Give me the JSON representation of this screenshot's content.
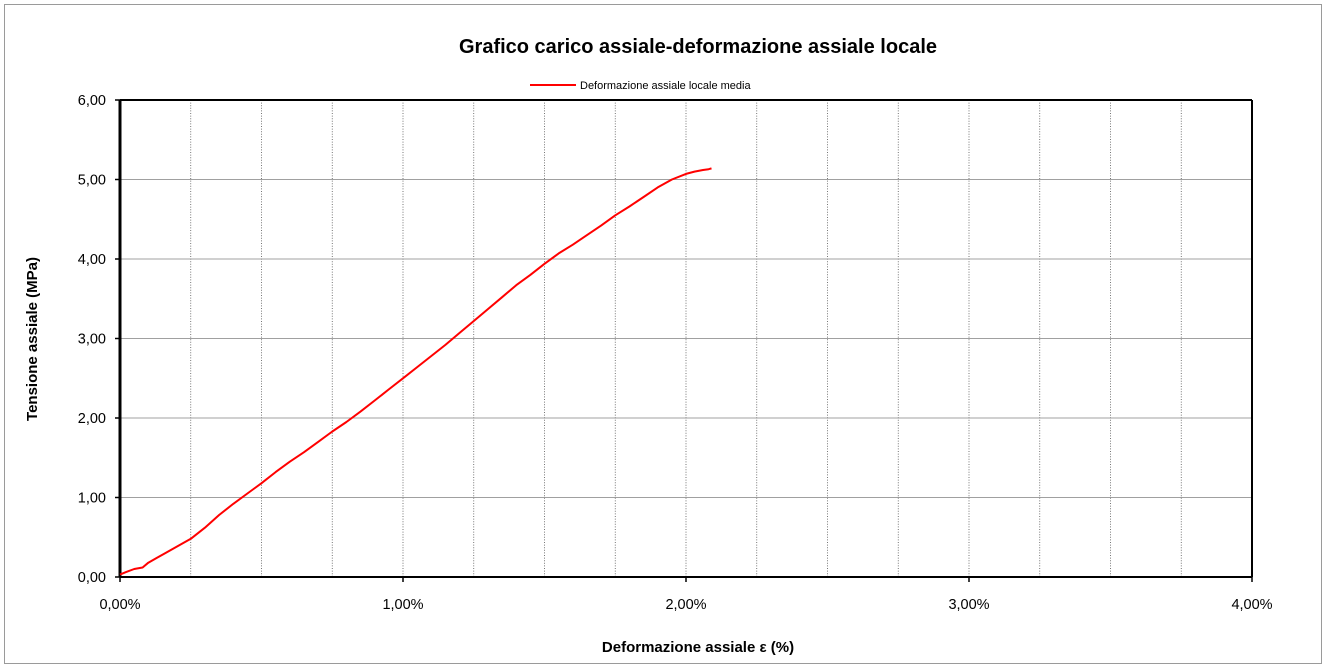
{
  "chart_data": {
    "type": "line",
    "title": "Grafico carico assiale-deformazione assiale locale",
    "xlabel": "Deformazione assiale ε (%)",
    "ylabel": "Tensione assiale (MPa)",
    "xlim": [
      0,
      4
    ],
    "ylim": [
      0,
      6
    ],
    "x_ticks": [
      "0,00%",
      "1,00%",
      "2,00%",
      "3,00%",
      "4,00%"
    ],
    "y_ticks": [
      "0,00",
      "1,00",
      "2,00",
      "3,00",
      "4,00",
      "5,00",
      "6,00"
    ],
    "x_minor_grid_step": 0.25,
    "y_grid_step": 1,
    "grid": true,
    "legend_position": "top-center",
    "series": [
      {
        "name": "Deformazione assiale locale media",
        "color": "#ff0000",
        "x": [
          0.0,
          0.02,
          0.05,
          0.08,
          0.1,
          0.13,
          0.16,
          0.2,
          0.25,
          0.3,
          0.35,
          0.4,
          0.45,
          0.5,
          0.55,
          0.6,
          0.65,
          0.7,
          0.75,
          0.8,
          0.85,
          0.9,
          0.95,
          1.0,
          1.05,
          1.1,
          1.15,
          1.2,
          1.25,
          1.3,
          1.35,
          1.4,
          1.45,
          1.5,
          1.55,
          1.6,
          1.65,
          1.7,
          1.75,
          1.8,
          1.85,
          1.9,
          1.95,
          2.0,
          2.03,
          2.06,
          2.08,
          2.09
        ],
        "y": [
          0.03,
          0.06,
          0.1,
          0.12,
          0.18,
          0.24,
          0.3,
          0.38,
          0.48,
          0.62,
          0.78,
          0.92,
          1.05,
          1.18,
          1.32,
          1.45,
          1.57,
          1.7,
          1.83,
          1.95,
          2.08,
          2.22,
          2.36,
          2.5,
          2.64,
          2.78,
          2.92,
          3.07,
          3.22,
          3.37,
          3.52,
          3.67,
          3.8,
          3.94,
          4.07,
          4.18,
          4.3,
          4.42,
          4.55,
          4.66,
          4.78,
          4.9,
          5.0,
          5.07,
          5.1,
          5.12,
          5.13,
          5.14
        ]
      }
    ]
  }
}
